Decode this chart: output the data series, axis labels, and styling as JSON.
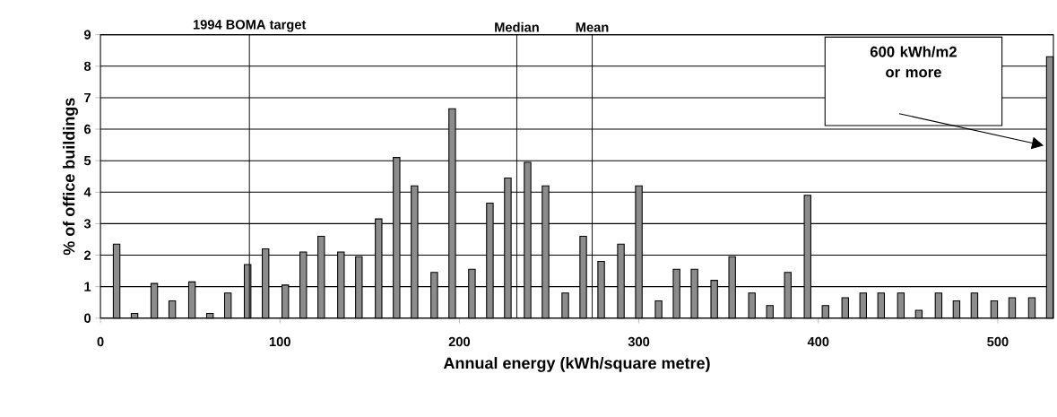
{
  "chart_data": {
    "type": "bar",
    "xlabel": "Annual energy (kWh/square metre)",
    "ylabel": "% of office buildings",
    "x": [
      9,
      19,
      30,
      40,
      51,
      61,
      71,
      82,
      92,
      103,
      113,
      123,
      134,
      144,
      155,
      165,
      175,
      186,
      196,
      207,
      217,
      227,
      238,
      248,
      259,
      269,
      279,
      290,
      300,
      311,
      321,
      331,
      342,
      352,
      363,
      373,
      383,
      394,
      404,
      415,
      425,
      435,
      446,
      456,
      467,
      477,
      487,
      498,
      508,
      519,
      529
    ],
    "values": [
      2.35,
      0.15,
      1.1,
      0.55,
      1.15,
      0.15,
      0.8,
      1.7,
      2.2,
      1.05,
      2.1,
      2.6,
      2.1,
      1.95,
      3.15,
      5.1,
      4.2,
      1.45,
      6.65,
      1.55,
      3.65,
      4.45,
      4.95,
      4.2,
      0.8,
      2.6,
      1.8,
      2.35,
      4.2,
      0.55,
      1.55,
      1.55,
      1.2,
      1.95,
      0.8,
      0.4,
      1.45,
      3.9,
      0.4,
      0.65,
      0.8,
      0.8,
      0.8,
      0.25,
      0.8,
      0.55,
      0.8,
      0.55,
      0.65,
      0.65,
      8.3
    ],
    "color": "#8c8c8c",
    "xlim": [
      0,
      531
    ],
    "ylim": [
      0,
      9
    ],
    "xticks": [
      0,
      100,
      200,
      300,
      400,
      500
    ],
    "yticks": [
      0,
      1,
      2,
      3,
      4,
      5,
      6,
      7,
      8,
      9
    ],
    "grid": "y",
    "ref_lines": [
      {
        "axis": "x",
        "value": 83,
        "label": "1994 BOMA target"
      },
      {
        "axis": "x",
        "value": 232,
        "label": "Median"
      },
      {
        "axis": "x",
        "value": 274,
        "label": "Mean"
      }
    ],
    "annotations": [
      "**600** kWh/m2 or more"
    ]
  }
}
